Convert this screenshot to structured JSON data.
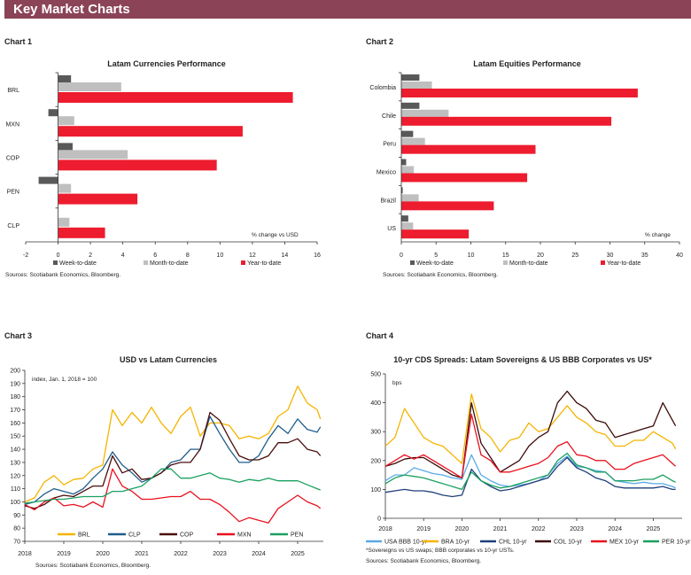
{
  "header": {
    "title": "Key Market Charts",
    "color": "#8b4358"
  },
  "chart_labels": [
    "Chart 1",
    "Chart 2",
    "Chart 3",
    "Chart 4"
  ],
  "chart_data": [
    {
      "type": "bar",
      "orientation": "horizontal",
      "title": "Latam Currencies Performance",
      "unit_label": "% change vs USD",
      "categories": [
        "BRL",
        "MXN",
        "COP",
        "PEN",
        "CLP"
      ],
      "series": [
        {
          "name": "Week-to-date",
          "color": "#595959",
          "values": [
            0.8,
            -0.6,
            0.9,
            -1.2,
            0.0
          ]
        },
        {
          "name": "Month-to-date",
          "color": "#bfbfbf",
          "values": [
            3.9,
            1.0,
            4.3,
            0.8,
            0.7
          ]
        },
        {
          "name": "Year-to-date",
          "color": "#ed1c2e",
          "values": [
            14.5,
            11.4,
            9.8,
            4.9,
            2.9
          ]
        }
      ],
      "xlim": [
        -2,
        16
      ],
      "xticks": [
        "-2",
        "0",
        "2",
        "4",
        "6",
        "8",
        "10",
        "12",
        "14",
        "16"
      ],
      "source": "Sources: Scotiabank Economics, Bloomberg.",
      "legend": "bottom"
    },
    {
      "type": "bar",
      "orientation": "horizontal",
      "title": "Latam Equities Performance",
      "unit_label": "% change",
      "categories": [
        "Colombia",
        "Chile",
        "Peru",
        "Mexico",
        "Brazil",
        "US"
      ],
      "series": [
        {
          "name": "Week-to-date",
          "color": "#595959",
          "values": [
            2.6,
            2.6,
            1.7,
            0.7,
            0.2,
            1.0
          ]
        },
        {
          "name": "Month-to-date",
          "color": "#bfbfbf",
          "values": [
            4.4,
            6.8,
            3.4,
            1.8,
            2.5,
            1.7
          ]
        },
        {
          "name": "Year-to-date",
          "color": "#ed1c2e",
          "values": [
            34.0,
            30.2,
            19.3,
            18.1,
            13.3,
            9.7
          ]
        }
      ],
      "xlim": [
        0,
        40
      ],
      "xticks": [
        "0",
        "5",
        "10",
        "15",
        "20",
        "25",
        "30",
        "35",
        "40"
      ],
      "source": "Sources: Scotiabank Economics, Bloomberg.",
      "legend": "bottom"
    },
    {
      "type": "line",
      "title": "USD vs Latam Currencies",
      "unit_label": "index, Jan. 1, 2018 = 100",
      "ylim": [
        70,
        200
      ],
      "yticks": [
        "70",
        "80",
        "90",
        "100",
        "110",
        "120",
        "130",
        "140",
        "150",
        "160",
        "170",
        "180",
        "190",
        "200"
      ],
      "xticks": [
        "2018",
        "2019",
        "2020",
        "2021",
        "2022",
        "2023",
        "2024",
        "2025"
      ],
      "x": [
        "2018-01",
        "2018-04",
        "2018-07",
        "2018-10",
        "2019-01",
        "2019-04",
        "2019-07",
        "2019-10",
        "2020-01",
        "2020-04",
        "2020-07",
        "2020-10",
        "2021-01",
        "2021-04",
        "2021-07",
        "2021-10",
        "2022-01",
        "2022-04",
        "2022-07",
        "2022-10",
        "2023-01",
        "2023-04",
        "2023-07",
        "2023-10",
        "2024-01",
        "2024-04",
        "2024-07",
        "2024-10",
        "2025-01",
        "2025-04",
        "2025-07",
        "2025-08"
      ],
      "series": [
        {
          "name": "BRL",
          "color": "#f5b400",
          "values": [
            100,
            103,
            115,
            120,
            113,
            117,
            118,
            125,
            128,
            170,
            158,
            168,
            160,
            172,
            160,
            152,
            165,
            172,
            150,
            160,
            160,
            158,
            148,
            150,
            148,
            152,
            165,
            170,
            188,
            175,
            170,
            163
          ]
        },
        {
          "name": "CLP",
          "color": "#1f5c8b",
          "values": [
            98,
            100,
            106,
            110,
            108,
            106,
            110,
            118,
            125,
            138,
            128,
            122,
            115,
            118,
            122,
            130,
            132,
            140,
            140,
            165,
            152,
            140,
            130,
            130,
            135,
            148,
            158,
            152,
            163,
            155,
            153,
            157
          ]
        },
        {
          "name": "COP",
          "color": "#4a0d0d",
          "values": [
            97,
            95,
            98,
            103,
            105,
            104,
            108,
            112,
            112,
            135,
            122,
            125,
            117,
            118,
            122,
            128,
            130,
            130,
            140,
            168,
            162,
            148,
            135,
            132,
            132,
            135,
            145,
            145,
            148,
            140,
            138,
            135
          ]
        },
        {
          "name": "MXN",
          "color": "#e8101e",
          "values": [
            98,
            94,
            100,
            103,
            97,
            98,
            96,
            100,
            96,
            125,
            112,
            108,
            102,
            102,
            103,
            104,
            104,
            108,
            102,
            102,
            98,
            92,
            85,
            88,
            86,
            84,
            95,
            100,
            105,
            100,
            97,
            95
          ]
        },
        {
          "name": "PEN",
          "color": "#1aa060",
          "values": [
            99,
            100,
            101,
            102,
            102,
            103,
            104,
            104,
            104,
            108,
            108,
            110,
            112,
            118,
            125,
            125,
            118,
            118,
            120,
            122,
            118,
            117,
            115,
            117,
            116,
            118,
            116,
            116,
            116,
            113,
            110,
            109
          ]
        }
      ],
      "source": "Sources: Scotiabank Economics, Bloomberg.",
      "legend": "bottom-inside"
    },
    {
      "type": "line",
      "title": "10-yr CDS Spreads: Latam Sovereigns & US BBB Corporates vs US*",
      "unit_label": "bps",
      "ylim": [
        0,
        500
      ],
      "yticks": [
        "0",
        "100",
        "200",
        "300",
        "400",
        "500"
      ],
      "xticks": [
        "2018",
        "2019",
        "2020",
        "2021",
        "2022",
        "2023",
        "2024",
        "2025"
      ],
      "x": [
        "2018-01",
        "2018-04",
        "2018-07",
        "2018-10",
        "2019-01",
        "2019-04",
        "2019-07",
        "2019-10",
        "2020-01",
        "2020-04",
        "2020-07",
        "2020-10",
        "2021-01",
        "2021-04",
        "2021-07",
        "2021-10",
        "2022-01",
        "2022-04",
        "2022-07",
        "2022-10",
        "2023-01",
        "2023-04",
        "2023-07",
        "2023-10",
        "2024-01",
        "2024-04",
        "2024-07",
        "2024-10",
        "2025-01",
        "2025-04",
        "2025-07",
        "2025-08"
      ],
      "series": [
        {
          "name": "USA BBB 10-yr",
          "color": "#5aa9e6",
          "values": [
            130,
            150,
            150,
            175,
            165,
            155,
            150,
            140,
            135,
            220,
            150,
            130,
            115,
            110,
            115,
            120,
            130,
            150,
            190,
            215,
            180,
            175,
            165,
            160,
            130,
            125,
            120,
            125,
            120,
            120,
            110,
            105
          ]
        },
        {
          "name": "BRA 10-yr",
          "color": "#f5b400",
          "values": [
            250,
            280,
            380,
            330,
            280,
            260,
            250,
            220,
            190,
            430,
            310,
            280,
            230,
            270,
            280,
            330,
            300,
            310,
            350,
            390,
            350,
            330,
            300,
            290,
            250,
            250,
            270,
            270,
            300,
            280,
            260,
            240
          ]
        },
        {
          "name": "CHL 10-yr",
          "color": "#1f3f7a",
          "values": [
            90,
            95,
            100,
            95,
            95,
            90,
            80,
            75,
            80,
            170,
            130,
            110,
            95,
            100,
            110,
            120,
            130,
            140,
            180,
            210,
            175,
            160,
            140,
            130,
            110,
            105,
            105,
            105,
            105,
            110,
            100,
            100
          ]
        },
        {
          "name": "COL 10-yr",
          "color": "#3d0a0a",
          "values": [
            180,
            190,
            205,
            210,
            210,
            190,
            170,
            150,
            140,
            400,
            260,
            210,
            160,
            180,
            200,
            250,
            280,
            300,
            400,
            440,
            400,
            380,
            340,
            330,
            280,
            290,
            300,
            310,
            320,
            400,
            340,
            320
          ]
        },
        {
          "name": "MEX 10-yr",
          "color": "#e8101e",
          "values": [
            180,
            200,
            220,
            205,
            220,
            200,
            180,
            160,
            140,
            360,
            220,
            200,
            160,
            160,
            170,
            180,
            190,
            210,
            250,
            265,
            220,
            215,
            200,
            200,
            170,
            170,
            190,
            200,
            210,
            220,
            190,
            180
          ]
        },
        {
          "name": "PER 10-yr",
          "color": "#1aa060",
          "values": [
            120,
            140,
            150,
            145,
            140,
            130,
            120,
            110,
            100,
            160,
            130,
            115,
            105,
            110,
            120,
            130,
            140,
            150,
            200,
            225,
            185,
            175,
            160,
            160,
            130,
            130,
            130,
            135,
            135,
            150,
            130,
            125
          ]
        }
      ],
      "footnote": "*Sovereigns vs US swaps; BBB corporates vs 10-yr USTs.",
      "source": "Sources: Scotiabank Economics, Bloomberg.",
      "legend": "bottom"
    }
  ]
}
